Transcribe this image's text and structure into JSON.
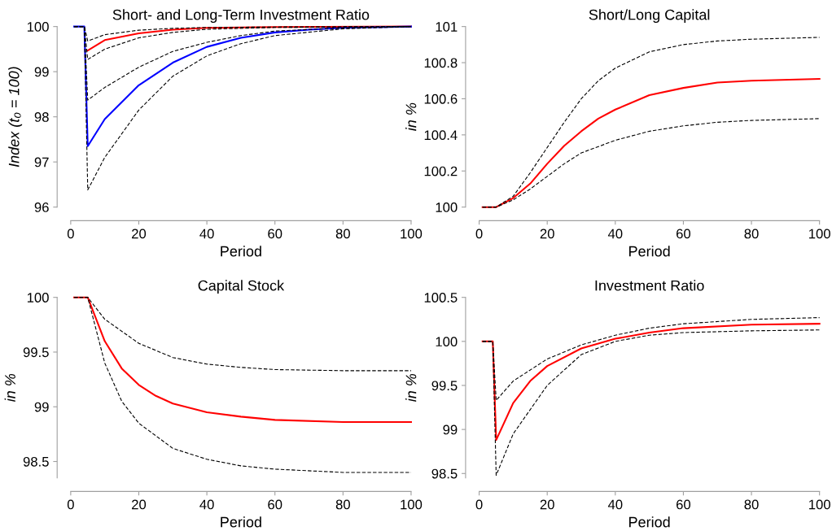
{
  "chart_data": [
    {
      "type": "line",
      "title": "Short- and Long-Term Investment Ratio",
      "xlabel": "Period",
      "ylabel": "Index (t₀ = 100)",
      "xlim": [
        0,
        100
      ],
      "ylim": [
        96,
        100
      ],
      "xticks": [
        0,
        20,
        40,
        60,
        80,
        100
      ],
      "yticks": [
        96,
        97,
        98,
        99,
        100
      ],
      "series": [
        {
          "color": "#000000",
          "line_style": "dashed",
          "x": [
            1,
            4,
            5,
            10,
            20,
            30,
            40,
            60,
            100
          ],
          "values": [
            100,
            100,
            99.68,
            99.82,
            99.92,
            99.96,
            99.98,
            99.99,
            100
          ]
        },
        {
          "color": "#000000",
          "line_style": "dashed",
          "x": [
            1,
            4,
            5,
            10,
            20,
            30,
            40,
            60,
            100
          ],
          "values": [
            100,
            100,
            99.27,
            99.5,
            99.75,
            99.87,
            99.94,
            99.98,
            100
          ]
        },
        {
          "color": "#000000",
          "line_style": "dashed",
          "x": [
            1,
            4,
            5,
            10,
            20,
            30,
            40,
            50,
            60,
            80,
            100
          ],
          "values": [
            100,
            100,
            98.37,
            98.65,
            99.1,
            99.45,
            99.65,
            99.8,
            99.9,
            99.97,
            100
          ]
        },
        {
          "color": "#000000",
          "line_style": "dashed",
          "x": [
            1,
            4,
            5,
            10,
            20,
            30,
            40,
            50,
            60,
            80,
            100
          ],
          "values": [
            100,
            100,
            96.38,
            97.1,
            98.15,
            98.9,
            99.35,
            99.62,
            99.8,
            99.95,
            100
          ]
        },
        {
          "color": "#ff0000",
          "line_style": "solid",
          "x": [
            5,
            10,
            20,
            30,
            40,
            60,
            100
          ],
          "values": [
            99.47,
            99.7,
            99.85,
            99.93,
            99.97,
            99.99,
            100
          ]
        },
        {
          "color": "#0000ff",
          "line_style": "solid",
          "x": [
            1,
            4,
            5,
            10,
            20,
            30,
            40,
            50,
            60,
            70,
            80,
            100
          ],
          "values": [
            100,
            100,
            97.35,
            97.95,
            98.7,
            99.2,
            99.55,
            99.75,
            99.87,
            99.93,
            99.97,
            100
          ]
        }
      ]
    },
    {
      "type": "line",
      "title": "Short/Long Capital",
      "xlabel": "Period",
      "ylabel": "in %",
      "xlim": [
        0,
        100
      ],
      "ylim": [
        100,
        101
      ],
      "xticks": [
        0,
        20,
        40,
        60,
        80,
        100
      ],
      "yticks": [
        100,
        100.2,
        100.4,
        100.6,
        100.8,
        101
      ],
      "series": [
        {
          "color": "#000000",
          "line_style": "dashed",
          "x": [
            1,
            5,
            10,
            15,
            20,
            25,
            30,
            35,
            40,
            50,
            60,
            70,
            80,
            100
          ],
          "values": [
            100,
            100,
            100.06,
            100.19,
            100.33,
            100.47,
            100.6,
            100.7,
            100.77,
            100.86,
            100.9,
            100.92,
            100.93,
            100.94
          ]
        },
        {
          "color": "#000000",
          "line_style": "dashed",
          "x": [
            1,
            5,
            10,
            15,
            20,
            25,
            30,
            40,
            50,
            60,
            70,
            80,
            100
          ],
          "values": [
            100,
            100,
            100.04,
            100.1,
            100.17,
            100.24,
            100.3,
            100.37,
            100.42,
            100.45,
            100.47,
            100.48,
            100.49
          ]
        },
        {
          "color": "#ff0000",
          "line_style": "solid",
          "x": [
            1,
            5,
            10,
            15,
            20,
            25,
            30,
            35,
            40,
            50,
            60,
            70,
            80,
            100
          ],
          "values": [
            100,
            100,
            100.05,
            100.13,
            100.24,
            100.34,
            100.42,
            100.49,
            100.54,
            100.62,
            100.66,
            100.69,
            100.7,
            100.71
          ]
        }
      ]
    },
    {
      "type": "line",
      "title": "Capital Stock",
      "xlabel": "Period",
      "ylabel": "in %",
      "xlim": [
        0,
        100
      ],
      "ylim": [
        98.35,
        100
      ],
      "xticks": [
        0,
        20,
        40,
        60,
        80,
        100
      ],
      "yticks": [
        98.5,
        99,
        99.5,
        100
      ],
      "series": [
        {
          "color": "#000000",
          "line_style": "dashed",
          "x": [
            1,
            5,
            10,
            20,
            30,
            40,
            50,
            60,
            80,
            100
          ],
          "values": [
            100,
            100,
            99.8,
            99.58,
            99.45,
            99.39,
            99.36,
            99.34,
            99.33,
            99.33
          ]
        },
        {
          "color": "#000000",
          "line_style": "dashed",
          "x": [
            1,
            5,
            10,
            15,
            20,
            30,
            40,
            50,
            60,
            80,
            100
          ],
          "values": [
            100,
            100,
            99.4,
            99.05,
            98.85,
            98.62,
            98.52,
            98.46,
            98.43,
            98.4,
            98.4
          ]
        },
        {
          "color": "#ff0000",
          "line_style": "solid",
          "x": [
            1,
            5,
            10,
            15,
            20,
            25,
            30,
            40,
            50,
            60,
            80,
            100
          ],
          "values": [
            100,
            100,
            99.6,
            99.35,
            99.2,
            99.1,
            99.03,
            98.95,
            98.91,
            98.88,
            98.86,
            98.86
          ]
        }
      ]
    },
    {
      "type": "line",
      "title": "Investment Ratio",
      "xlabel": "Period",
      "ylabel": "in %",
      "xlim": [
        0,
        100
      ],
      "ylim": [
        98.45,
        100.5
      ],
      "xticks": [
        0,
        20,
        40,
        60,
        80,
        100
      ],
      "yticks": [
        98.5,
        99,
        99.5,
        100,
        100.5
      ],
      "series": [
        {
          "color": "#000000",
          "line_style": "dashed",
          "x": [
            1,
            4,
            5,
            10,
            20,
            30,
            40,
            50,
            60,
            80,
            100
          ],
          "values": [
            100,
            100,
            99.33,
            99.55,
            99.8,
            99.96,
            100.07,
            100.15,
            100.2,
            100.25,
            100.27
          ]
        },
        {
          "color": "#000000",
          "line_style": "dashed",
          "x": [
            1,
            4,
            5,
            10,
            20,
            30,
            40,
            50,
            60,
            80,
            100
          ],
          "values": [
            100,
            100,
            98.48,
            98.95,
            99.5,
            99.85,
            100.0,
            100.07,
            100.1,
            100.12,
            100.13
          ]
        },
        {
          "color": "#ff0000",
          "line_style": "solid",
          "x": [
            1,
            4,
            5,
            10,
            15,
            20,
            30,
            40,
            50,
            60,
            80,
            100
          ],
          "values": [
            100,
            100,
            98.88,
            99.3,
            99.55,
            99.72,
            99.92,
            100.03,
            100.1,
            100.15,
            100.19,
            100.2
          ]
        }
      ]
    }
  ]
}
